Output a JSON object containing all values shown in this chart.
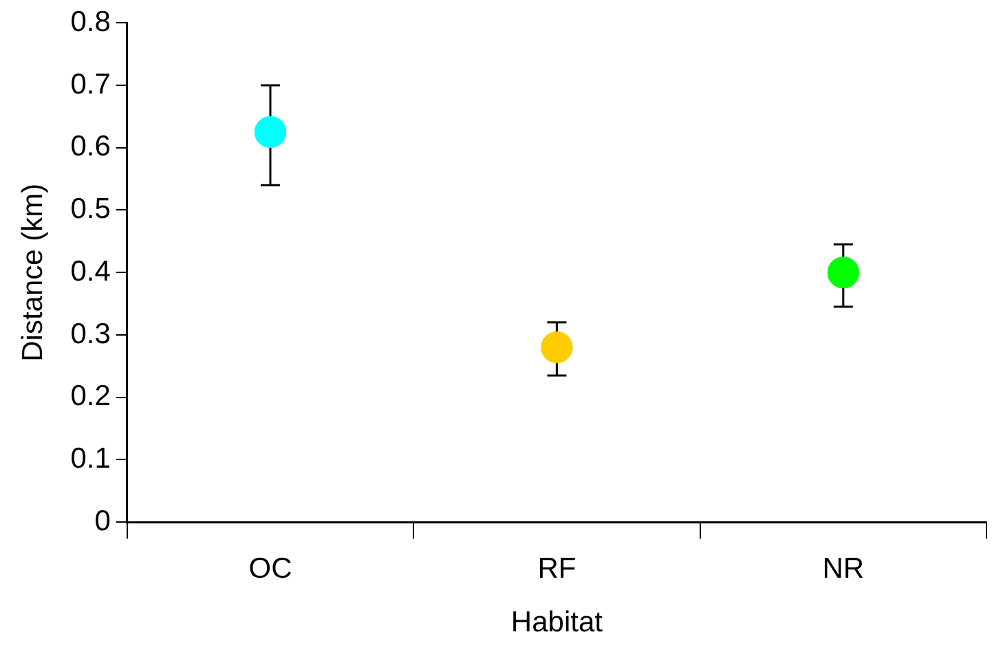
{
  "chart_data": {
    "type": "scatter",
    "xlabel": "Habitat",
    "ylabel": "Distance (km)",
    "categories": [
      "OC",
      "RF",
      "NR"
    ],
    "values": [
      0.625,
      0.28,
      0.4
    ],
    "colors": [
      "#00ffff",
      "#ffcc00",
      "#00ff00"
    ],
    "errors": [
      [
        0.54,
        0.7
      ],
      [
        0.235,
        0.32
      ],
      [
        0.345,
        0.445
      ]
    ],
    "ylim": [
      0,
      0.8
    ],
    "yticks": [
      0,
      0.1,
      0.2,
      0.3,
      0.4,
      0.5,
      0.6,
      0.7,
      0.8
    ],
    "grid": false,
    "legend": false,
    "marker": "circle"
  }
}
